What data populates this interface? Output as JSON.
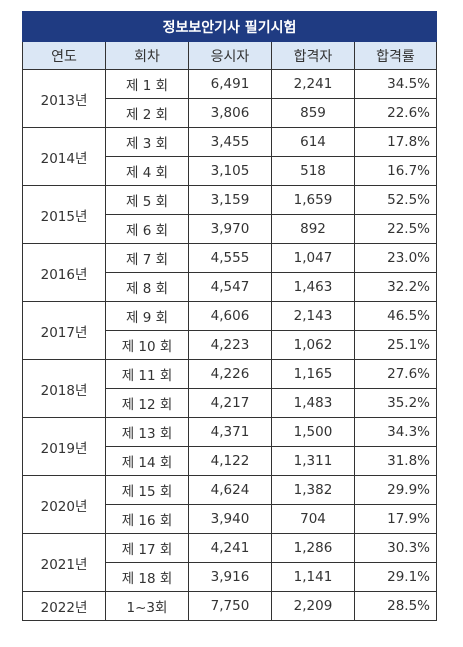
{
  "title": "정보보안기사 필기시험",
  "headers": {
    "year": "연도",
    "round": "회차",
    "applicants": "응시자",
    "passers": "합격자",
    "rate": "합격률"
  },
  "groups": [
    {
      "year": "2013년",
      "rows": [
        {
          "round": "제 1 회",
          "applicants": "6,491",
          "passers": "2,241",
          "rate": "34.5%"
        },
        {
          "round": "제 2 회",
          "applicants": "3,806",
          "passers": "859",
          "rate": "22.6%"
        }
      ]
    },
    {
      "year": "2014년",
      "rows": [
        {
          "round": "제 3 회",
          "applicants": "3,455",
          "passers": "614",
          "rate": "17.8%"
        },
        {
          "round": "제 4 회",
          "applicants": "3,105",
          "passers": "518",
          "rate": "16.7%"
        }
      ]
    },
    {
      "year": "2015년",
      "rows": [
        {
          "round": "제 5 회",
          "applicants": "3,159",
          "passers": "1,659",
          "rate": "52.5%"
        },
        {
          "round": "제 6 회",
          "applicants": "3,970",
          "passers": "892",
          "rate": "22.5%"
        }
      ]
    },
    {
      "year": "2016년",
      "rows": [
        {
          "round": "제 7 회",
          "applicants": "4,555",
          "passers": "1,047",
          "rate": "23.0%"
        },
        {
          "round": "제 8 회",
          "applicants": "4,547",
          "passers": "1,463",
          "rate": "32.2%"
        }
      ]
    },
    {
      "year": "2017년",
      "rows": [
        {
          "round": "제 9 회",
          "applicants": "4,606",
          "passers": "2,143",
          "rate": "46.5%"
        },
        {
          "round": "제 10 회",
          "applicants": "4,223",
          "passers": "1,062",
          "rate": "25.1%"
        }
      ]
    },
    {
      "year": "2018년",
      "rows": [
        {
          "round": "제 11 회",
          "applicants": "4,226",
          "passers": "1,165",
          "rate": "27.6%"
        },
        {
          "round": "제 12 회",
          "applicants": "4,217",
          "passers": "1,483",
          "rate": "35.2%"
        }
      ]
    },
    {
      "year": "2019년",
      "rows": [
        {
          "round": "제 13 회",
          "applicants": "4,371",
          "passers": "1,500",
          "rate": "34.3%"
        },
        {
          "round": "제 14 회",
          "applicants": "4,122",
          "passers": "1,311",
          "rate": "31.8%"
        }
      ]
    },
    {
      "year": "2020년",
      "rows": [
        {
          "round": "제 15 회",
          "applicants": "4,624",
          "passers": "1,382",
          "rate": "29.9%"
        },
        {
          "round": "제 16 회",
          "applicants": "3,940",
          "passers": "704",
          "rate": "17.9%"
        }
      ]
    },
    {
      "year": "2021년",
      "rows": [
        {
          "round": "제 17 회",
          "applicants": "4,241",
          "passers": "1,286",
          "rate": "30.3%"
        },
        {
          "round": "제 18 회",
          "applicants": "3,916",
          "passers": "1,141",
          "rate": "29.1%"
        }
      ]
    },
    {
      "year": "2022년",
      "rows": [
        {
          "round": "1~3회",
          "applicants": "7,750",
          "passers": "2,209",
          "rate": "28.5%"
        }
      ]
    }
  ],
  "colors": {
    "title_bg": "#1f3b82",
    "header_bg": "#dbe7f5",
    "border": "#333333"
  }
}
